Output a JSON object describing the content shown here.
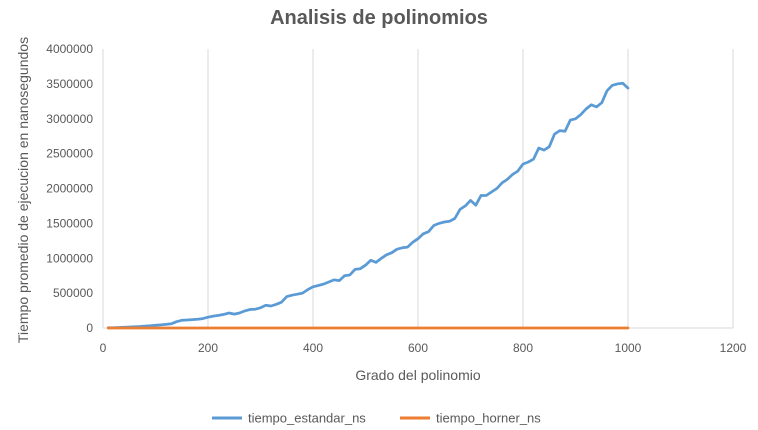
{
  "chart_data": {
    "type": "scatter",
    "title": "Analisis de polinomios",
    "xlabel": "Grado del polinomio",
    "ylabel": "Tiempo promedio de ejecucion en nanosegundos",
    "xlim": [
      0,
      1200
    ],
    "ylim": [
      0,
      4000000
    ],
    "xticks": [
      0,
      200,
      400,
      600,
      800,
      1000,
      1200
    ],
    "yticks": [
      0,
      500000,
      1000000,
      1500000,
      2000000,
      2500000,
      3000000,
      3500000,
      4000000
    ],
    "grid": "vertical",
    "legend_position": "bottom",
    "series": [
      {
        "name": "tiempo_estandar_ns",
        "color": "#5b9bd5",
        "x": [
          10,
          20,
          30,
          40,
          50,
          60,
          70,
          80,
          90,
          100,
          110,
          120,
          130,
          140,
          150,
          160,
          170,
          180,
          190,
          200,
          210,
          220,
          230,
          240,
          250,
          260,
          270,
          280,
          290,
          300,
          310,
          320,
          330,
          340,
          350,
          360,
          370,
          380,
          390,
          400,
          410,
          420,
          430,
          440,
          450,
          460,
          470,
          480,
          490,
          500,
          510,
          520,
          530,
          540,
          550,
          560,
          570,
          580,
          590,
          600,
          610,
          620,
          630,
          640,
          650,
          660,
          670,
          680,
          690,
          700,
          710,
          720,
          730,
          740,
          750,
          760,
          770,
          780,
          790,
          800,
          810,
          820,
          830,
          840,
          850,
          860,
          870,
          880,
          890,
          900,
          910,
          920,
          930,
          940,
          950,
          960,
          970,
          980,
          990,
          1000
        ],
        "y": [
          3000,
          5000,
          7000,
          10000,
          14000,
          18000,
          22000,
          27000,
          32000,
          38000,
          45000,
          52000,
          60000,
          90000,
          110000,
          115000,
          120000,
          125000,
          135000,
          155000,
          170000,
          180000,
          195000,
          215000,
          200000,
          215000,
          245000,
          265000,
          270000,
          290000,
          325000,
          315000,
          340000,
          370000,
          450000,
          470000,
          485000,
          500000,
          550000,
          590000,
          610000,
          630000,
          660000,
          690000,
          680000,
          750000,
          760000,
          840000,
          850000,
          900000,
          970000,
          940000,
          1000000,
          1050000,
          1080000,
          1130000,
          1150000,
          1160000,
          1230000,
          1280000,
          1350000,
          1380000,
          1470000,
          1500000,
          1520000,
          1530000,
          1570000,
          1700000,
          1750000,
          1830000,
          1760000,
          1900000,
          1900000,
          1950000,
          2000000,
          2080000,
          2130000,
          2200000,
          2250000,
          2350000,
          2380000,
          2420000,
          2580000,
          2550000,
          2600000,
          2780000,
          2830000,
          2820000,
          2980000,
          3000000,
          3060000,
          3140000,
          3200000,
          3170000,
          3230000,
          3400000,
          3480000,
          3500000,
          3510000,
          3440000
        ]
      },
      {
        "name": "tiempo_horner_ns",
        "color": "#ed7d31",
        "x": [
          10,
          1000
        ],
        "y": [
          0,
          0
        ]
      }
    ]
  }
}
